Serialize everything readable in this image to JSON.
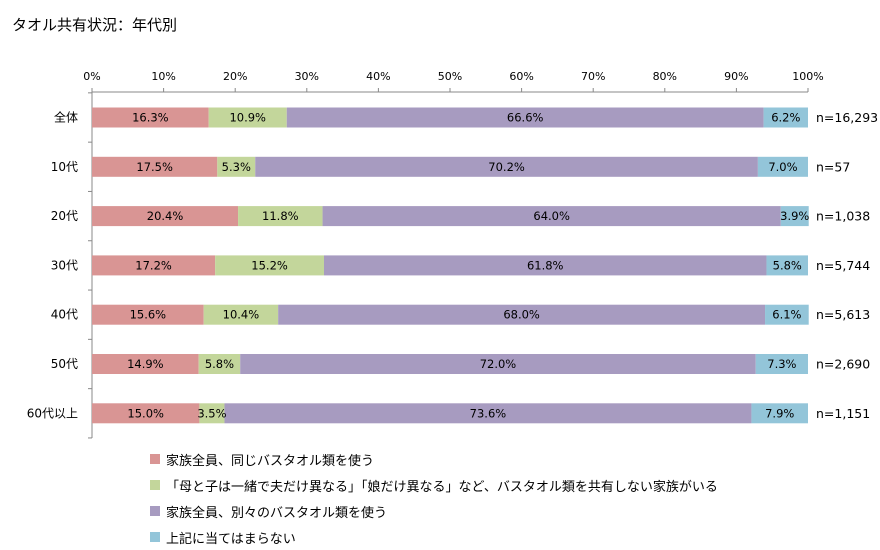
{
  "chart_data": {
    "type": "bar",
    "orientation": "horizontal",
    "stacked": true,
    "title": "タオル共有状況：年代別",
    "xlim": [
      0,
      100
    ],
    "x_ticks": [
      "0%",
      "10%",
      "20%",
      "30%",
      "40%",
      "50%",
      "60%",
      "70%",
      "80%",
      "90%",
      "100%"
    ],
    "grid": false,
    "legend_position": "bottom",
    "categories": [
      "全体",
      "10代",
      "20代",
      "30代",
      "40代",
      "50代",
      "60代以上"
    ],
    "sample_sizes": [
      "n=16,293",
      "n=57",
      "n=1,038",
      "n=5,744",
      "n=5,613",
      "n=2,690",
      "n=1,151"
    ],
    "series": [
      {
        "name": "家族全員、同じバスタオル類を使う",
        "color": "#d99594",
        "values": [
          16.3,
          17.5,
          20.4,
          17.2,
          15.6,
          14.9,
          15.0
        ]
      },
      {
        "name": "「母と子は一緒で夫だけ異なる」「娘だけ異なる」など、バスタオル類を共有しない家族がいる",
        "color": "#c3d69b",
        "values": [
          10.9,
          5.3,
          11.8,
          15.2,
          10.4,
          5.8,
          3.5
        ]
      },
      {
        "name": "家族全員、別々のバスタオル類を使う",
        "color": "#a79bc0",
        "values": [
          66.6,
          70.2,
          64.0,
          61.8,
          68.0,
          72.0,
          73.6
        ]
      },
      {
        "name": "上記に当てはまらない",
        "color": "#93c5d9",
        "values": [
          6.2,
          7.0,
          3.9,
          5.8,
          6.1,
          7.3,
          7.9
        ]
      }
    ]
  }
}
